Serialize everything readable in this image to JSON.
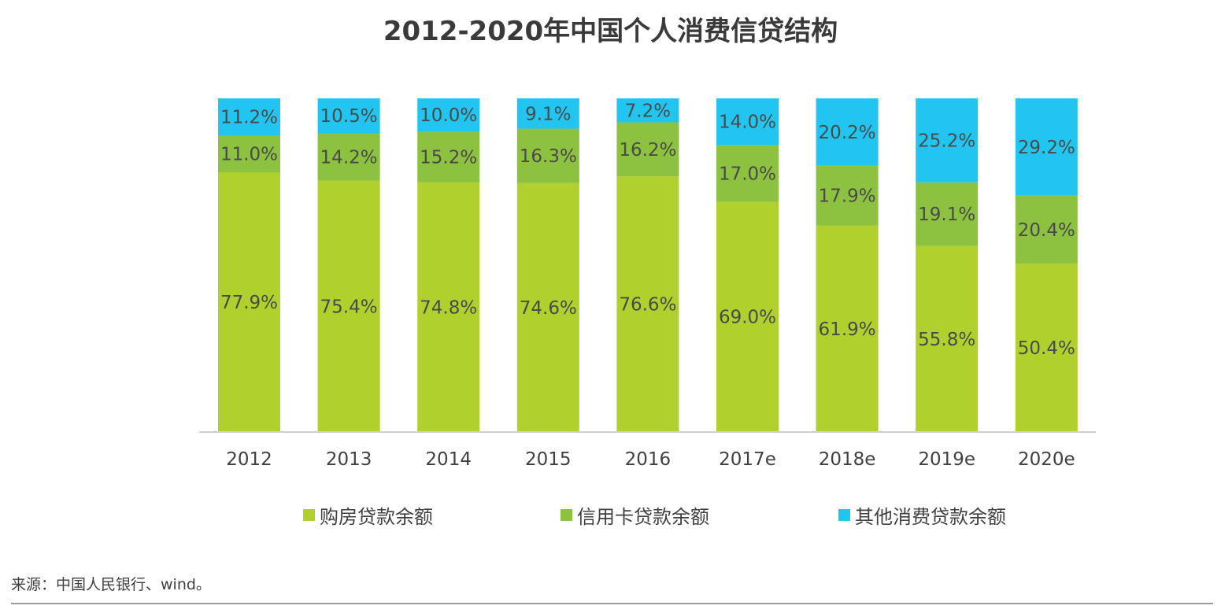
{
  "chart_data": {
    "type": "bar",
    "stacked": true,
    "normalized": true,
    "title": "2012-2020年中国个人消费信贷结构",
    "categories": [
      "2012",
      "2013",
      "2014",
      "2015",
      "2016",
      "2017e",
      "2018e",
      "2019e",
      "2020e"
    ],
    "series": [
      {
        "name": "购房贷款余额",
        "color": "#b0d02e",
        "values": [
          77.9,
          75.4,
          74.8,
          74.6,
          76.6,
          69.0,
          61.9,
          55.8,
          50.4
        ],
        "labels": [
          "77.9%",
          "75.4%",
          "74.8%",
          "74.6%",
          "76.6%",
          "69.0%",
          "61.9%",
          "55.8%",
          "50.4%"
        ]
      },
      {
        "name": "信用卡贷款余额",
        "color": "#8cc23f",
        "values": [
          11.0,
          14.2,
          15.2,
          16.3,
          16.2,
          17.0,
          17.9,
          19.1,
          20.4
        ],
        "labels": [
          "11.0%",
          "14.2%",
          "15.2%",
          "16.3%",
          "16.2%",
          "17.0%",
          "17.9%",
          "19.1%",
          "20.4%"
        ]
      },
      {
        "name": "其他消费贷款余额",
        "color": "#22c5ef",
        "values": [
          11.2,
          10.5,
          10.0,
          9.1,
          7.2,
          14.0,
          20.2,
          25.2,
          29.2
        ],
        "labels": [
          "11.2%",
          "10.5%",
          "10.0%",
          "9.1%",
          "7.2%",
          "14.0%",
          "20.2%",
          "25.2%",
          "29.2%"
        ]
      }
    ],
    "ylim": [
      0,
      100
    ],
    "grid": false,
    "legend_position": "bottom"
  },
  "source_note": "来源：中国人民银行、wind。",
  "colors": {
    "axis": "#d0d0d0",
    "footer_line": "#9a9a9a"
  }
}
